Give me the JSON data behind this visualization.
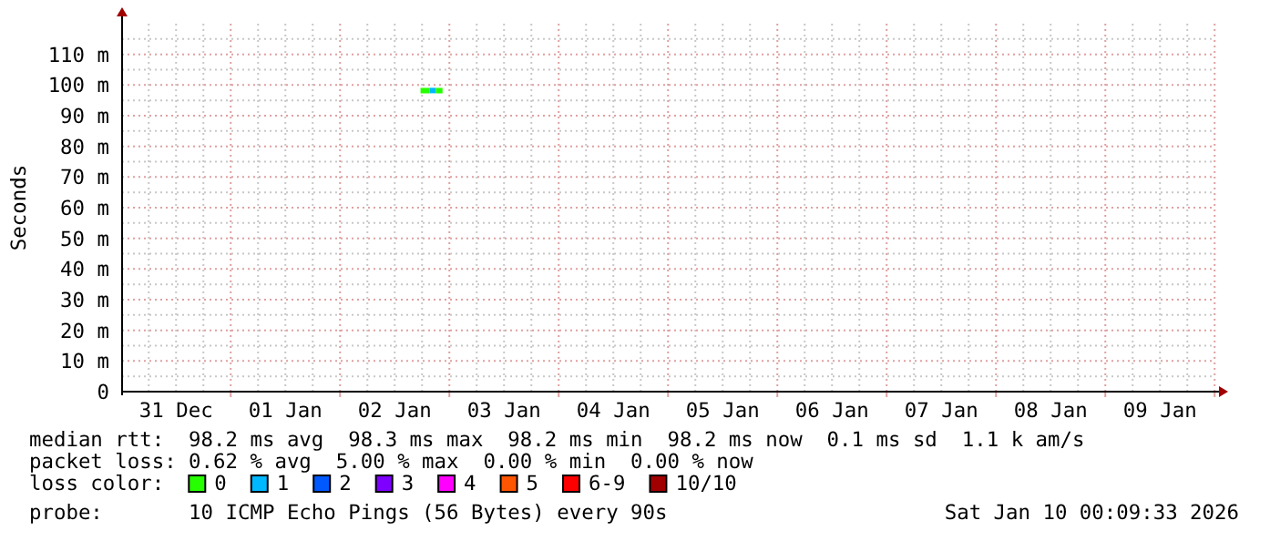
{
  "chart_data": {
    "type": "line",
    "ylabel": "Seconds",
    "legend_title": "loss color:",
    "legend": "bottom",
    "grid": true,
    "xlim": [
      "2025-12-31T00:09",
      "2026-01-10T00:09"
    ],
    "xticks": [
      {
        "value": "2025-12-31T06:00",
        "label": null
      },
      {
        "value": "2025-12-31T12:00",
        "label": "31 Dec"
      },
      {
        "value": "2025-12-31T18:00",
        "label": null
      },
      {
        "value": "2026-01-01T00:00",
        "label": null
      },
      {
        "value": "2026-01-01T06:00",
        "label": null
      },
      {
        "value": "2026-01-01T12:00",
        "label": "01 Jan"
      },
      {
        "value": "2026-01-01T18:00",
        "label": null
      },
      {
        "value": "2026-01-02T00:00",
        "label": null
      },
      {
        "value": "2026-01-02T06:00",
        "label": null
      },
      {
        "value": "2026-01-02T12:00",
        "label": "02 Jan"
      },
      {
        "value": "2026-01-02T18:00",
        "label": null
      },
      {
        "value": "2026-01-03T00:00",
        "label": null
      },
      {
        "value": "2026-01-03T06:00",
        "label": null
      },
      {
        "value": "2026-01-03T12:00",
        "label": "03 Jan"
      },
      {
        "value": "2026-01-03T18:00",
        "label": null
      },
      {
        "value": "2026-01-04T00:00",
        "label": null
      },
      {
        "value": "2026-01-04T06:00",
        "label": null
      },
      {
        "value": "2026-01-04T12:00",
        "label": "04 Jan"
      },
      {
        "value": "2026-01-04T18:00",
        "label": null
      },
      {
        "value": "2026-01-05T00:00",
        "label": null
      },
      {
        "value": "2026-01-05T06:00",
        "label": null
      },
      {
        "value": "2026-01-05T12:00",
        "label": "05 Jan"
      },
      {
        "value": "2026-01-05T18:00",
        "label": null
      },
      {
        "value": "2026-01-06T00:00",
        "label": null
      },
      {
        "value": "2026-01-06T06:00",
        "label": null
      },
      {
        "value": "2026-01-06T12:00",
        "label": "06 Jan"
      },
      {
        "value": "2026-01-06T18:00",
        "label": null
      },
      {
        "value": "2026-01-07T00:00",
        "label": null
      },
      {
        "value": "2026-01-07T06:00",
        "label": null
      },
      {
        "value": "2026-01-07T12:00",
        "label": "07 Jan"
      },
      {
        "value": "2026-01-07T18:00",
        "label": null
      },
      {
        "value": "2026-01-08T00:00",
        "label": null
      },
      {
        "value": "2026-01-08T06:00",
        "label": null
      },
      {
        "value": "2026-01-08T12:00",
        "label": "08 Jan"
      },
      {
        "value": "2026-01-08T18:00",
        "label": null
      },
      {
        "value": "2026-01-09T00:00",
        "label": null
      },
      {
        "value": "2026-01-09T06:00",
        "label": null
      },
      {
        "value": "2026-01-09T12:00",
        "label": "09 Jan"
      },
      {
        "value": "2026-01-09T18:00",
        "label": null
      },
      {
        "value": "2026-01-10T00:00",
        "label": null
      }
    ],
    "ylim": [
      0,
      120
    ],
    "yticks": [
      0,
      {
        "value": 5,
        "label": null
      },
      {
        "value": 10,
        "label": "10 m"
      },
      {
        "value": 15,
        "label": null
      },
      {
        "value": 20,
        "label": "20 m"
      },
      {
        "value": 25,
        "label": null
      },
      {
        "value": 30,
        "label": "30 m"
      },
      {
        "value": 35,
        "label": null
      },
      {
        "value": 40,
        "label": "40 m"
      },
      {
        "value": 45,
        "label": null
      },
      {
        "value": 50,
        "label": "50 m"
      },
      {
        "value": 55,
        "label": null
      },
      {
        "value": 60,
        "label": "60 m"
      },
      {
        "value": 65,
        "label": null
      },
      {
        "value": 70,
        "label": "70 m"
      },
      {
        "value": 75,
        "label": null
      },
      {
        "value": 80,
        "label": "80 m"
      },
      {
        "value": 85,
        "label": null
      },
      {
        "value": 90,
        "label": "90 m"
      },
      {
        "value": 95,
        "label": null
      },
      {
        "value": 100,
        "label": "100 m"
      },
      {
        "value": 105,
        "label": null
      },
      {
        "value": 110,
        "label": "110 m"
      },
      {
        "value": 115,
        "label": null
      }
    ],
    "series": [
      {
        "name": "0",
        "color": "#26ff00",
        "x": [
          "2026-01-02T17:40",
          "2026-01-02T18:30",
          "2026-01-02T19:20",
          "2026-01-02T19:40",
          "2026-01-02T20:20",
          "2026-01-02T21:00",
          "2026-01-02T21:30",
          "2026-01-02T22:30"
        ],
        "values": [
          98.2,
          98.2,
          98.2,
          98.2,
          null,
          98.2,
          98.2,
          98.2
        ]
      },
      {
        "name": "1",
        "color": "#00b8ff",
        "x": [
          "2026-01-02T19:40",
          "2026-01-02T21:00"
        ],
        "values": [
          98.2,
          98.2
        ]
      },
      {
        "name": "2",
        "color": "#0059ff"
      },
      {
        "name": "3",
        "color": "#7e00ff"
      },
      {
        "name": "4",
        "color": "#ff00ff"
      },
      {
        "name": "5",
        "color": "#ff5500"
      },
      {
        "name": "6-9",
        "color": "#ff0000"
      },
      {
        "name": "10/10",
        "color": "#a10000"
      }
    ],
    "annotations": [
      "median rtt:  98.2 ms avg  98.3 ms max  98.2 ms min  98.2 ms now  0.1 ms sd  1.1 k am/s",
      "packet loss: 0.62 % avg  5.00 % max  0.00 % min  0.00 % now",
      "probe:       10 ICMP Echo Pings (56 Bytes) every 90s",
      "Sat Jan 10 00:09:33 2026"
    ]
  }
}
